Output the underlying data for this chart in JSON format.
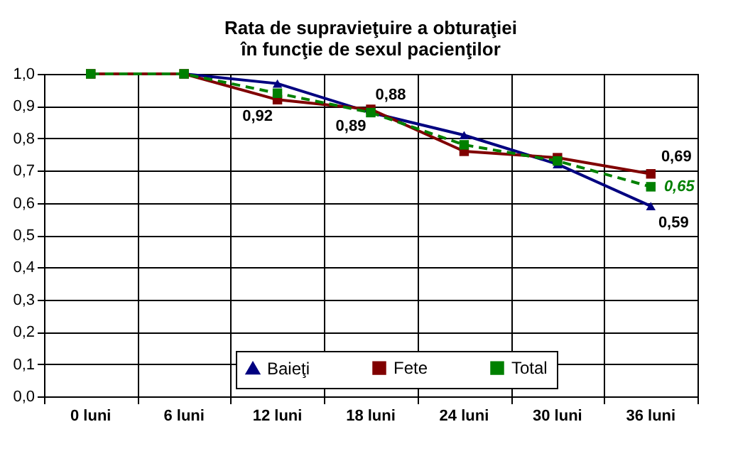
{
  "chart_data": {
    "type": "line",
    "title": [
      "Rata de supravieţuire a obturaţiei",
      "în funcţie de sexul pacienţilor"
    ],
    "categories": [
      "0 luni",
      "6 luni",
      "12 luni",
      "18 luni",
      "24 luni",
      "30 luni",
      "36 luni"
    ],
    "series": [
      {
        "name": "Baieţi",
        "color": "#000080",
        "marker": "triangle",
        "line_style": "solid",
        "values": [
          1.0,
          1.0,
          0.97,
          0.88,
          0.81,
          0.72,
          0.59
        ],
        "value_labels": [
          null,
          null,
          null,
          "0,88",
          null,
          null,
          "0,59"
        ]
      },
      {
        "name": "Fete",
        "color": "#800000",
        "marker": "square",
        "line_style": "solid",
        "values": [
          1.0,
          1.0,
          0.92,
          0.89,
          0.76,
          0.74,
          0.69
        ],
        "value_labels": [
          null,
          null,
          "0,92",
          "0,89",
          null,
          null,
          "0,69"
        ]
      },
      {
        "name": "Total",
        "color": "#008000",
        "marker": "square",
        "line_style": "dashed",
        "values": [
          1.0,
          1.0,
          0.94,
          0.88,
          0.78,
          0.73,
          0.65
        ],
        "value_labels": [
          null,
          null,
          null,
          null,
          null,
          null,
          "0,65"
        ]
      }
    ],
    "ylim": [
      0,
      1
    ],
    "yticks": [
      {
        "value": 0,
        "label": "0,0"
      },
      {
        "value": 0.1,
        "label": "0,1"
      },
      {
        "value": 0.2,
        "label": "0,2"
      },
      {
        "value": 0.3,
        "label": "0,3"
      },
      {
        "value": 0.4,
        "label": "0,4"
      },
      {
        "value": 0.5,
        "label": "0,5"
      },
      {
        "value": 0.6,
        "label": "0,6"
      },
      {
        "value": 0.7,
        "label": "0,7"
      },
      {
        "value": 0.8,
        "label": "0,8"
      },
      {
        "value": 0.9,
        "label": "0,9"
      },
      {
        "value": 1,
        "label": "1,0"
      }
    ],
    "grid": true,
    "legend": "bottom"
  }
}
